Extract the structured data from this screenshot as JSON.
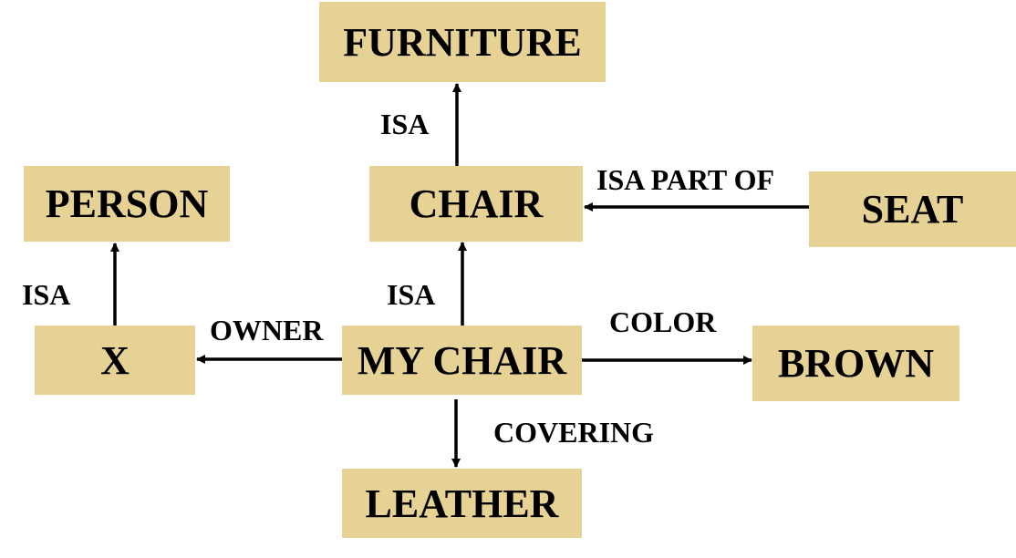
{
  "nodes": {
    "furniture": "FURNITURE",
    "chair": "CHAIR",
    "seat": "SEAT",
    "person": "PERSON",
    "x": "X",
    "my_chair": "MY CHAIR",
    "brown": "BROWN",
    "leather": "LEATHER"
  },
  "edges": {
    "chair_isa_furniture": "ISA",
    "seat_part_of_chair": "ISA PART OF",
    "x_isa_person": "ISA",
    "mychair_isa_chair": "ISA",
    "mychair_owner_x": "OWNER",
    "mychair_color_brown": "COLOR",
    "mychair_covering_leather": "COVERING"
  },
  "colors": {
    "node_fill": "#e6d295",
    "text": "#000000",
    "arrow": "#000000"
  }
}
